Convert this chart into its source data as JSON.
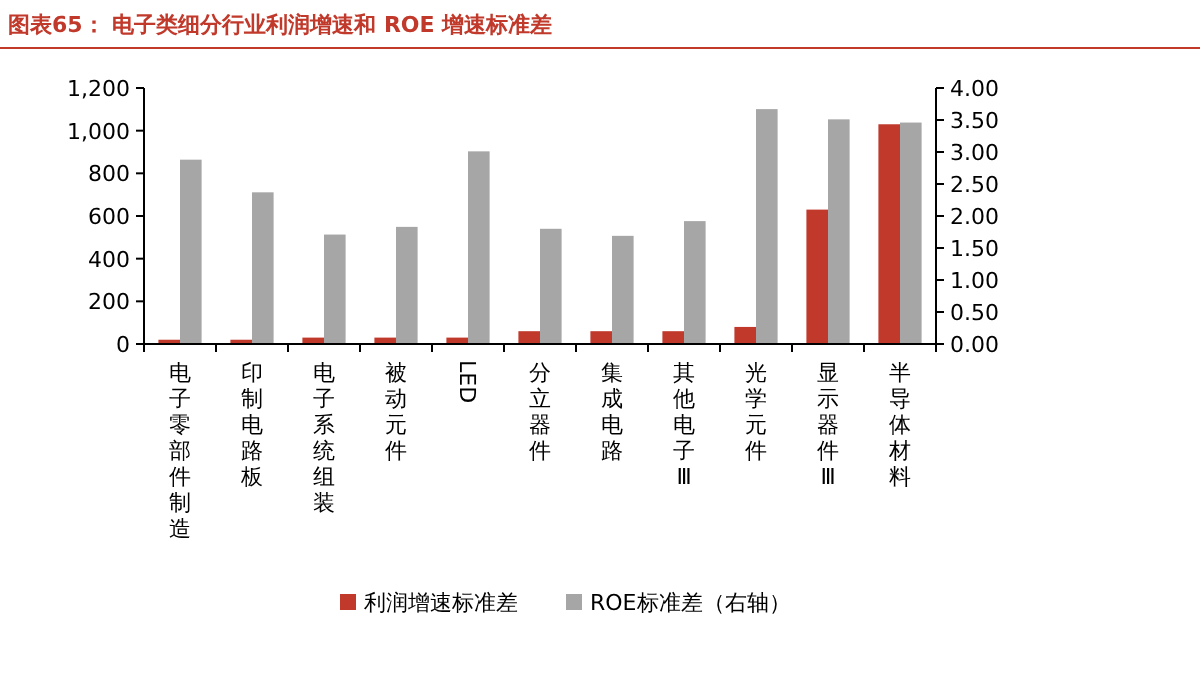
{
  "chart_data": {
    "type": "bar",
    "title": "图表65： 电子类细分行业利润增速和 ROE 增速标准差",
    "categories": [
      "电子零部件制造",
      "印制电路板",
      "电子系统组装",
      "被动元件",
      "LED",
      "分立器件",
      "集成电路",
      "其他电子Ⅲ",
      "光学元件",
      "显示器件Ⅲ",
      "半导体材料"
    ],
    "series": [
      {
        "name": "利润增速标准差",
        "color": "#c0392b",
        "values": [
          20,
          20,
          30,
          30,
          30,
          60,
          60,
          60,
          80,
          630,
          1030
        ]
      },
      {
        "name": "ROE标准差（右轴）",
        "color": "#a6a6a6",
        "axis": "y2",
        "values": [
          2.88,
          2.37,
          1.71,
          1.83,
          3.01,
          1.8,
          1.69,
          1.92,
          3.67,
          3.51,
          3.46
        ]
      }
    ],
    "ylim": [
      0,
      1200
    ],
    "yticks": [
      0,
      200,
      400,
      600,
      800,
      {
        "value": 1000,
        "label": "1,000"
      },
      {
        "value": 1200,
        "label": "1,200"
      }
    ],
    "y2lim": [
      0,
      4
    ],
    "y2ticks": [
      {
        "value": 0,
        "label": "0.00"
      },
      {
        "value": 0.5,
        "label": "0.50"
      },
      {
        "value": 1,
        "label": "1.00"
      },
      {
        "value": 1.5,
        "label": "1.50"
      },
      {
        "value": 2,
        "label": "2.00"
      },
      {
        "value": 2.5,
        "label": "2.50"
      },
      {
        "value": 3,
        "label": "3.00"
      },
      {
        "value": 3.5,
        "label": "3.50"
      },
      {
        "value": 4,
        "label": "4.00"
      }
    ],
    "legend": "bottom"
  }
}
